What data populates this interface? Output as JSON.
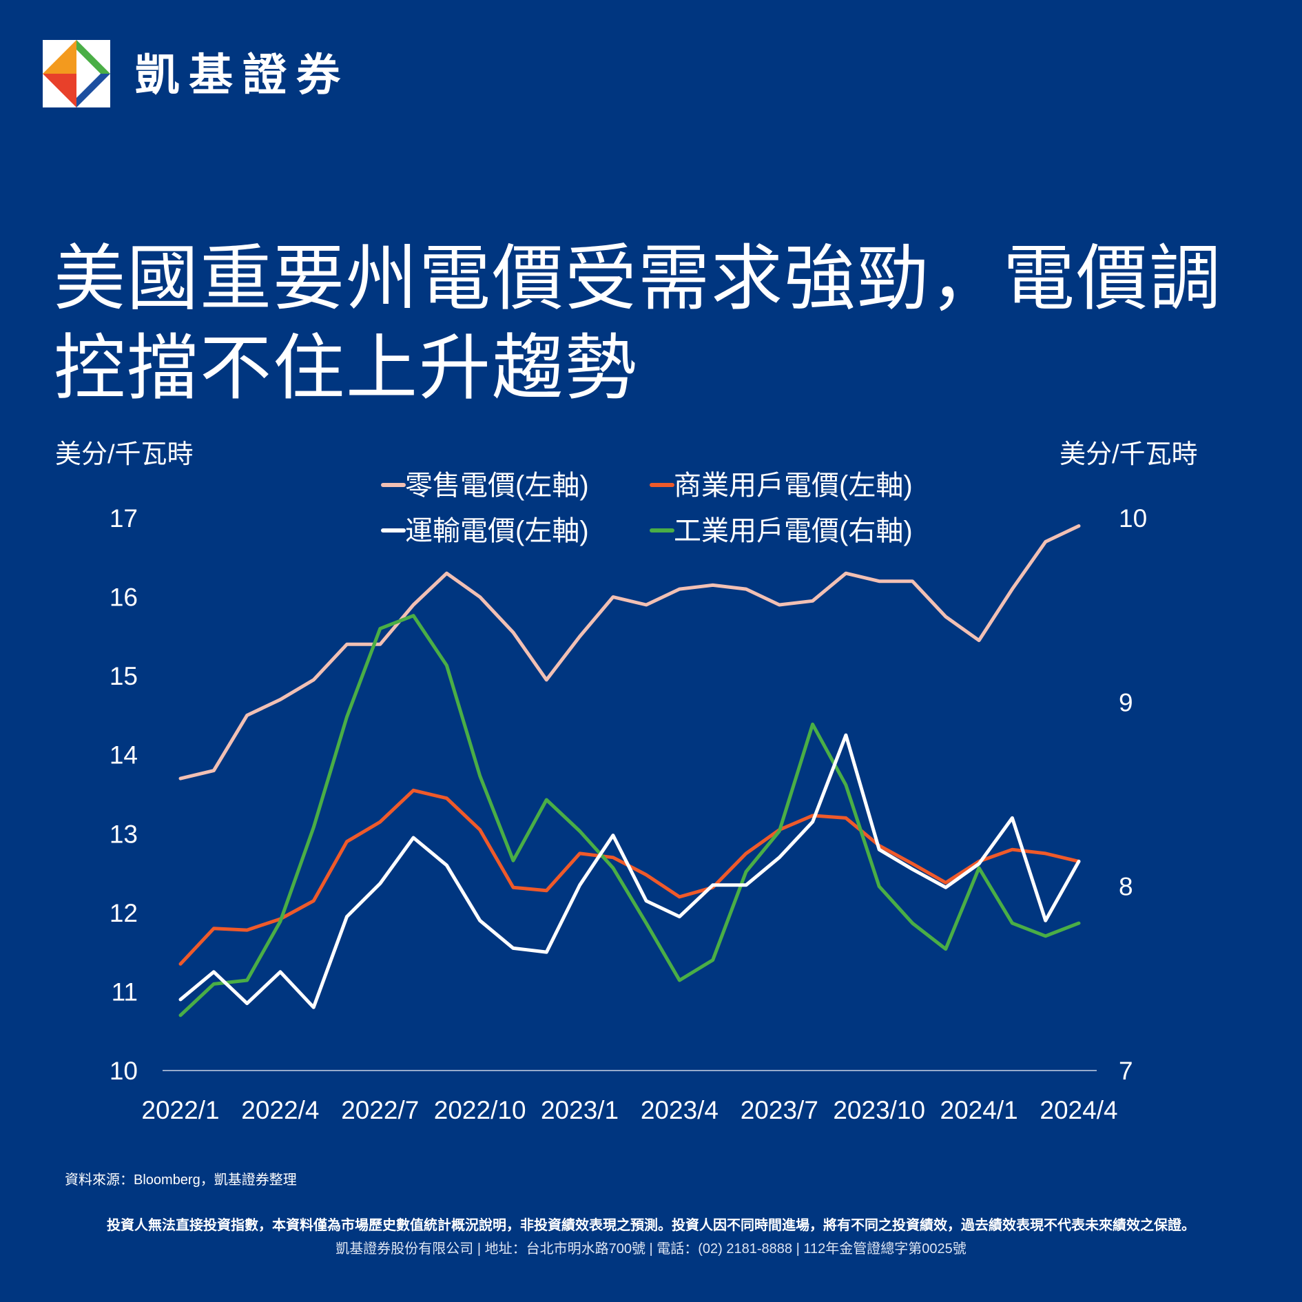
{
  "brand": {
    "name": "凱基證券"
  },
  "title": "美國重要州電價受需求強勁，電價調控擋不住上升趨勢",
  "chart_data": {
    "type": "line",
    "left_axis": {
      "label": "美分/千瓦時",
      "ylim": [
        10,
        17
      ],
      "ticks": [
        "17",
        "16",
        "15",
        "14",
        "13",
        "12",
        "11",
        "10"
      ]
    },
    "right_axis": {
      "label": "美分/千瓦時",
      "ylim": [
        7,
        10
      ],
      "ticks": [
        "10",
        "9",
        "8",
        "7"
      ]
    },
    "x_ticks": [
      "2022/1",
      "2022/4",
      "2022/7",
      "2022/10",
      "2023/1",
      "2023/4",
      "2023/7",
      "2023/10",
      "2024/1",
      "2024/4"
    ],
    "x": [
      "2022/1",
      "2022/2",
      "2022/3",
      "2022/4",
      "2022/5",
      "2022/6",
      "2022/7",
      "2022/8",
      "2022/9",
      "2022/10",
      "2022/11",
      "2022/12",
      "2023/1",
      "2023/2",
      "2023/3",
      "2023/4",
      "2023/5",
      "2023/6",
      "2023/7",
      "2023/8",
      "2023/9",
      "2023/10",
      "2023/11",
      "2023/12",
      "2024/1",
      "2024/2",
      "2024/3",
      "2024/4"
    ],
    "grid": false,
    "legend_placement": "top",
    "series": [
      {
        "name": "零售電價(左軸)",
        "axis": "left",
        "color": "#f2c0b4",
        "values": [
          13.7,
          13.8,
          14.5,
          14.7,
          14.95,
          15.4,
          15.4,
          15.9,
          16.3,
          16.0,
          15.55,
          14.95,
          15.5,
          16.0,
          15.9,
          16.1,
          16.15,
          16.1,
          15.9,
          15.95,
          16.3,
          16.2,
          16.2,
          15.75,
          15.45,
          16.1,
          16.7,
          16.9
        ]
      },
      {
        "name": "商業用戶電價(左軸)",
        "axis": "left",
        "color": "#ef5a2a",
        "values": [
          11.35,
          11.8,
          11.78,
          11.92,
          12.15,
          12.9,
          13.15,
          13.55,
          13.45,
          13.05,
          12.32,
          12.28,
          12.75,
          12.7,
          12.48,
          12.2,
          12.32,
          12.75,
          13.05,
          13.23,
          13.2,
          12.85,
          12.62,
          12.38,
          12.65,
          12.8,
          12.75,
          12.65
        ]
      },
      {
        "name": "運輸電價(左軸)",
        "axis": "left",
        "color": "#ffffff",
        "values": [
          10.9,
          11.25,
          10.85,
          11.25,
          10.8,
          11.95,
          12.37,
          12.95,
          12.6,
          11.9,
          11.55,
          11.5,
          12.35,
          12.98,
          12.15,
          11.95,
          12.35,
          12.35,
          12.7,
          13.15,
          14.25,
          12.8,
          12.55,
          12.32,
          12.62,
          13.2,
          11.9,
          12.65
        ]
      },
      {
        "name": "工業用戶電價(右軸)",
        "axis": "right",
        "color": "#4aae46",
        "values": [
          7.3,
          7.47,
          7.49,
          7.81,
          8.32,
          8.92,
          9.4,
          9.47,
          9.2,
          8.6,
          8.14,
          8.47,
          8.3,
          8.1,
          7.8,
          7.49,
          7.6,
          8.08,
          8.3,
          8.88,
          8.55,
          8.0,
          7.8,
          7.66,
          8.1,
          7.8,
          7.73,
          7.8
        ]
      }
    ]
  },
  "footer": {
    "source": "資料來源：Bloomberg，凱基證券整理",
    "disclaimer": "投資人無法直接投資指數，本資料僅為市場歷史數值統計概況說明，非投資績效表現之預測。投資人因不同時間進場，將有不同之投資績效，過去績效表現不代表未來績效之保證。",
    "company": "凱基證券股份有限公司 | 地址：台北市明水路700號 | 電話：(02) 2181-8888 | 112年金管證總字第0025號"
  }
}
